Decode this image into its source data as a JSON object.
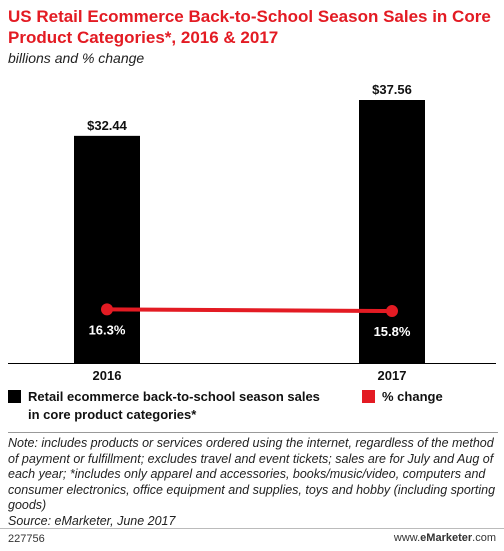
{
  "chart_data": {
    "type": "bar",
    "title": "US Retail Ecommerce Back-to-School Season Sales in Core Product Categories*, 2016 & 2017",
    "subtitle": "billions and % change",
    "categories": [
      "2016",
      "2017"
    ],
    "series": [
      {
        "name": "Retail ecommerce back-to-school season sales in core product categories*",
        "type": "bar",
        "values": [
          32.44,
          37.56
        ],
        "labels": [
          "$32.44",
          "$37.56"
        ],
        "color": "#000000"
      },
      {
        "name": "% change",
        "type": "line",
        "values": [
          16.3,
          15.8
        ],
        "labels": [
          "16.3%",
          "15.8%"
        ],
        "color": "#e31b23"
      }
    ],
    "bar_ylim": [
      0,
      37.56
    ],
    "line_ylim": [
      0,
      80
    ],
    "grid": false,
    "legend_placement": "bottom"
  },
  "notes": "Note: includes products or services ordered using the internet, regardless of the method of payment or fulfillment; excludes travel and event tickets; sales are for July and Aug of each year; *includes only apparel and accessories, books/music/video, computers and consumer electronics, office equipment and supplies, toys and hobby (including sporting goods)",
  "source": "Source: eMarketer, June 2017",
  "footer": {
    "chart_id": "227756",
    "brand_prefix": "www.",
    "brand_name": "eMarketer",
    "brand_suffix": ".com"
  }
}
